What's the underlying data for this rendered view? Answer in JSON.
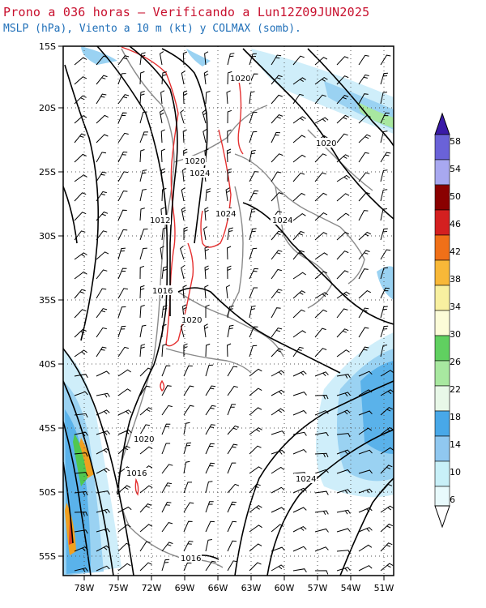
{
  "header": {
    "title": "Prono a 036 horas — Verificando a Lun12Z09JUN2025",
    "subtitle": "MSLP (hPa), Viento a 10 m (kt) y COLMAX (somb)."
  },
  "map": {
    "lat_labels": [
      "15S",
      "20S",
      "25S",
      "30S",
      "35S",
      "40S",
      "45S",
      "50S",
      "55S"
    ],
    "lon_labels": [
      "78W",
      "75W",
      "72W",
      "69W",
      "66W",
      "63W",
      "60W",
      "57W",
      "54W",
      "51W"
    ],
    "isobar_labels": [
      "1020",
      "1020",
      "1020",
      "1024",
      "1012",
      "1024",
      "1024",
      "1016",
      "1020",
      "1020",
      "1016",
      "1024",
      "1016"
    ],
    "gridlines": "dotted",
    "contour_colors": {
      "isobar": "#000000",
      "high_terrain": "#e53030",
      "borders": "#888888"
    }
  },
  "colorbar": {
    "labels": [
      "58",
      "54",
      "50",
      "46",
      "42",
      "38",
      "34",
      "30",
      "26",
      "22",
      "18",
      "14",
      "10",
      "6"
    ],
    "colors": [
      "#3a1aa8",
      "#6a62d8",
      "#a8a8f0",
      "#8a0000",
      "#d42020",
      "#f07018",
      "#f8b838",
      "#f8f0a0",
      "#fcfcd8",
      "#60d060",
      "#a8e8a0",
      "#e8f8e8",
      "#48a8e8",
      "#90c8f0",
      "#c8f0f8"
    ]
  }
}
